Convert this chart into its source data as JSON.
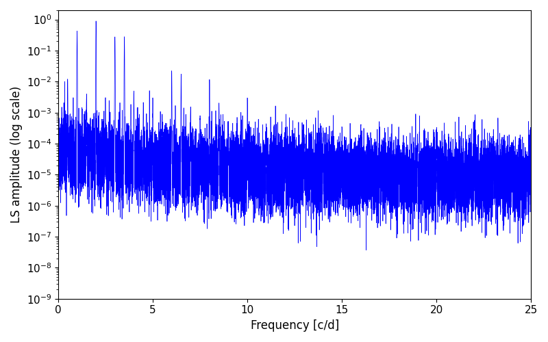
{
  "title": "",
  "xlabel": "Frequency [c/d]",
  "ylabel": "LS amplitude (log scale)",
  "xlim": [
    0,
    25
  ],
  "ylim_log": [
    1e-09,
    2.0
  ],
  "line_color": "#0000FF",
  "line_width": 0.5,
  "figsize": [
    8.0,
    5.0
  ],
  "dpi": 100,
  "seed": 42,
  "n_points": 15000,
  "freq_max": 25.0,
  "background_color": "#ffffff",
  "tick_label_size": 11,
  "axis_label_size": 12
}
